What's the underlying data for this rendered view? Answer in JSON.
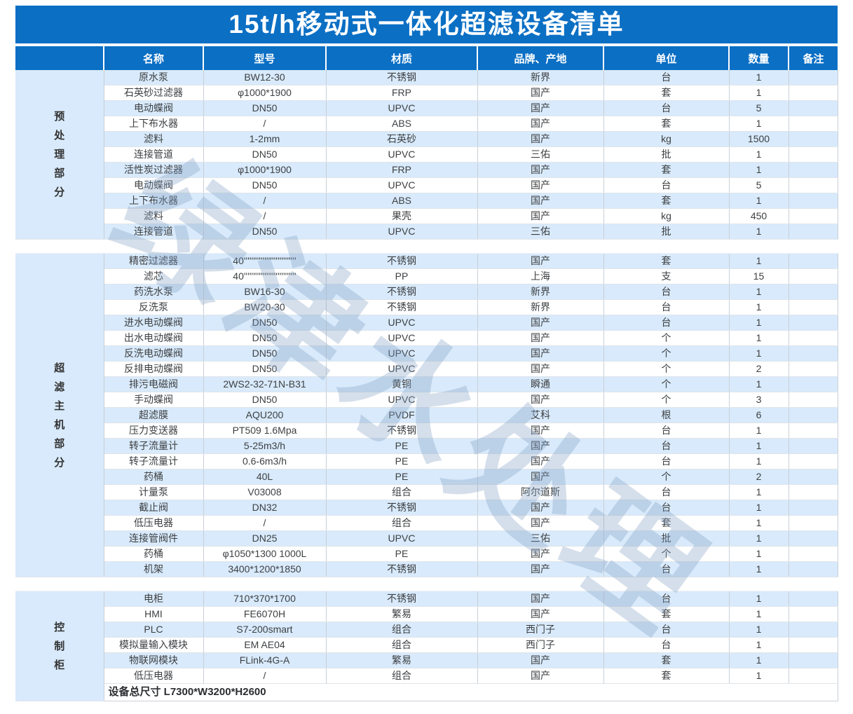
{
  "title": "15t/h移动式一体化超滤设备清单",
  "watermark": "绿津水处理",
  "colors": {
    "header_blue": "#0b6fc4",
    "stripe_blue": "#d8eafb"
  },
  "columns": [
    "名称",
    "型号",
    "材质",
    "品牌、产地",
    "单位",
    "数量",
    "备注"
  ],
  "footer": "设备总尺寸 L7300*W3200*H2600",
  "sections": [
    {
      "group": "预处理部分",
      "rows": [
        [
          "原水泵",
          "BW12-30",
          "不锈钢",
          "新界",
          "台",
          "1",
          ""
        ],
        [
          "石英砂过滤器",
          "φ1000*1900",
          "FRP",
          "国产",
          "套",
          "1",
          ""
        ],
        [
          "电动蝶阀",
          "DN50",
          "UPVC",
          "国产",
          "台",
          "5",
          ""
        ],
        [
          "上下布水器",
          "/",
          "ABS",
          "国产",
          "套",
          "1",
          ""
        ],
        [
          "滤料",
          "1-2mm",
          "石英砂",
          "国产",
          "kg",
          "1500",
          ""
        ],
        [
          "连接管道",
          "DN50",
          "UPVC",
          "三佑",
          "批",
          "1",
          ""
        ],
        [
          "活性炭过滤器",
          "φ1000*1900",
          "FRP",
          "国产",
          "套",
          "1",
          ""
        ],
        [
          "电动蝶阀",
          "DN50",
          "UPVC",
          "国产",
          "台",
          "5",
          ""
        ],
        [
          "上下布水器",
          "/",
          "ABS",
          "国产",
          "套",
          "1",
          ""
        ],
        [
          "滤料",
          "/",
          "果壳",
          "国产",
          "kg",
          "450",
          ""
        ],
        [
          "连接管道",
          "DN50",
          "UPVC",
          "三佑",
          "批",
          "1",
          ""
        ]
      ]
    },
    {
      "group": "超滤主机部分",
      "rows": [
        [
          "精密过滤器",
          "40''''''''''''''''''''''''''''",
          "不锈钢",
          "国产",
          "套",
          "1",
          ""
        ],
        [
          "滤芯",
          "40''''''''''''''''''''''''''''",
          "PP",
          "上海",
          "支",
          "15",
          ""
        ],
        [
          "药洗水泵",
          "BW16-30",
          "不锈钢",
          "新界",
          "台",
          "1",
          ""
        ],
        [
          "反洗泵",
          "BW20-30",
          "不锈钢",
          "新界",
          "台",
          "1",
          ""
        ],
        [
          "进水电动蝶阀",
          "DN50",
          "UPVC",
          "国产",
          "台",
          "1",
          ""
        ],
        [
          "出水电动蝶阀",
          "DN50",
          "UPVC",
          "国产",
          "个",
          "1",
          ""
        ],
        [
          "反洗电动蝶阀",
          "DN50",
          "UPVC",
          "国产",
          "个",
          "1",
          ""
        ],
        [
          "反排电动蝶阀",
          "DN50",
          "UPVC",
          "国产",
          "个",
          "2",
          ""
        ],
        [
          "排污电磁阀",
          "2WS2-32-71N-B31",
          "黄铜",
          "瞬通",
          "个",
          "1",
          ""
        ],
        [
          "手动蝶阀",
          "DN50",
          "UPVC",
          "国产",
          "个",
          "3",
          ""
        ],
        [
          "超滤膜",
          "AQU200",
          "PVDF",
          "艾科",
          "根",
          "6",
          ""
        ],
        [
          "压力变送器",
          "PT509 1.6Mpa",
          "不锈钢",
          "国产",
          "台",
          "1",
          ""
        ],
        [
          "转子流量计",
          "5-25m3/h",
          "PE",
          "国产",
          "台",
          "1",
          ""
        ],
        [
          "转子流量计",
          "0.6-6m3/h",
          "PE",
          "国产",
          "台",
          "1",
          ""
        ],
        [
          "药桶",
          "40L",
          "PE",
          "国产",
          "个",
          "2",
          ""
        ],
        [
          "计量泵",
          "V03008",
          "组合",
          "阿尔道斯",
          "台",
          "1",
          ""
        ],
        [
          "截止阀",
          "DN32",
          "不锈钢",
          "国产",
          "台",
          "1",
          ""
        ],
        [
          "低压电器",
          "/",
          "组合",
          "国产",
          "套",
          "1",
          ""
        ],
        [
          "连接管阀件",
          "DN25",
          "UPVC",
          "三佑",
          "批",
          "1",
          ""
        ],
        [
          "药桶",
          "φ1050*1300 1000L",
          "PE",
          "国产",
          "个",
          "1",
          ""
        ],
        [
          "机架",
          "3400*1200*1850",
          "不锈钢",
          "国产",
          "台",
          "1",
          ""
        ]
      ]
    },
    {
      "group": "控制柜",
      "rows": [
        [
          "电柜",
          "710*370*1700",
          "不锈钢",
          "国产",
          "台",
          "1",
          ""
        ],
        [
          "HMI",
          "FE6070H",
          "繁易",
          "国产",
          "套",
          "1",
          ""
        ],
        [
          "PLC",
          "S7-200smart",
          "组合",
          "西门子",
          "台",
          "1",
          ""
        ],
        [
          "模拟量输入模块",
          "EM AE04",
          "组合",
          "西门子",
          "台",
          "1",
          ""
        ],
        [
          "物联网模块",
          "FLink-4G-A",
          "繁易",
          "国产",
          "套",
          "1",
          ""
        ],
        [
          "低压电器",
          "/",
          "组合",
          "国产",
          "套",
          "1",
          ""
        ]
      ]
    }
  ]
}
